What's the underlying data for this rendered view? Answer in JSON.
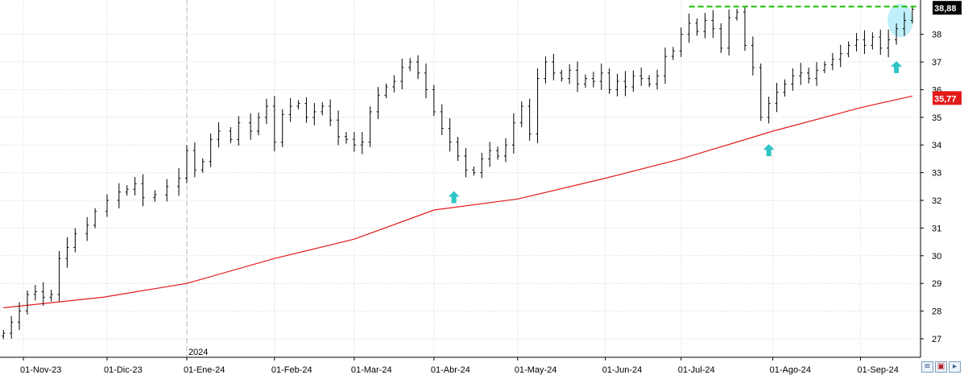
{
  "chart_data": {
    "type": "ohlc",
    "title": "",
    "xlabel": "",
    "ylabel": "",
    "ylim": [
      26.4,
      39.2
    ],
    "y_ticks": [
      27,
      28,
      29,
      30,
      31,
      32,
      33,
      34,
      35,
      36,
      37,
      38
    ],
    "x_ticks": [
      {
        "label": "01-Nov-23",
        "x": 0
      },
      {
        "label": "01-Dic-23",
        "x": 21
      },
      {
        "label": "01-Ene-24",
        "x": 41
      },
      {
        "label": "01-Feb-24",
        "x": 63
      },
      {
        "label": "01-Mar-24",
        "x": 83
      },
      {
        "label": "01-Abr-24",
        "x": 103
      },
      {
        "label": "01-May-24",
        "x": 124
      },
      {
        "label": "01-Jun-24",
        "x": 146
      },
      {
        "label": "01-Jul-24",
        "x": 165
      },
      {
        "label": "01-Ago-24",
        "x": 188
      },
      {
        "label": "01-Sep-24",
        "x": 210
      }
    ],
    "year_marker": {
      "label": "2024",
      "x": 41
    },
    "price_label": {
      "value": "38,88",
      "color": "#000000"
    },
    "ma_label": {
      "value": "35,77",
      "color": "#e31a1c"
    },
    "resistance_level": 39.0,
    "resistance_start_x": 167,
    "price_close_series": [
      {
        "x": -5,
        "y": 27.2
      },
      {
        "x": -3,
        "y": 27.6
      },
      {
        "x": -1,
        "y": 28.0
      },
      {
        "x": 1,
        "y": 28.6
      },
      {
        "x": 3,
        "y": 28.7
      },
      {
        "x": 5,
        "y": 28.5
      },
      {
        "x": 7,
        "y": 28.6
      },
      {
        "x": 9,
        "y": 29.9
      },
      {
        "x": 11,
        "y": 30.3
      },
      {
        "x": 13,
        "y": 30.8
      },
      {
        "x": 16,
        "y": 31.1
      },
      {
        "x": 18,
        "y": 31.6
      },
      {
        "x": 21,
        "y": 32.0
      },
      {
        "x": 24,
        "y": 32.3
      },
      {
        "x": 26,
        "y": 32.4
      },
      {
        "x": 28,
        "y": 32.6
      },
      {
        "x": 30,
        "y": 32.1
      },
      {
        "x": 33,
        "y": 32.2
      },
      {
        "x": 36,
        "y": 32.5
      },
      {
        "x": 39,
        "y": 32.8
      },
      {
        "x": 41,
        "y": 33.8
      },
      {
        "x": 43,
        "y": 33.1
      },
      {
        "x": 45,
        "y": 33.4
      },
      {
        "x": 47,
        "y": 34.2
      },
      {
        "x": 49,
        "y": 34.5
      },
      {
        "x": 52,
        "y": 34.2
      },
      {
        "x": 54,
        "y": 34.8
      },
      {
        "x": 57,
        "y": 34.5
      },
      {
        "x": 59,
        "y": 35.0
      },
      {
        "x": 61,
        "y": 35.4
      },
      {
        "x": 63,
        "y": 34.1
      },
      {
        "x": 65,
        "y": 35.1
      },
      {
        "x": 67,
        "y": 35.4
      },
      {
        "x": 69,
        "y": 35.5
      },
      {
        "x": 71,
        "y": 35.0
      },
      {
        "x": 73,
        "y": 35.2
      },
      {
        "x": 75,
        "y": 35.4
      },
      {
        "x": 77,
        "y": 34.9
      },
      {
        "x": 79,
        "y": 34.3
      },
      {
        "x": 81,
        "y": 34.2
      },
      {
        "x": 83,
        "y": 34.0
      },
      {
        "x": 85,
        "y": 34.1
      },
      {
        "x": 87,
        "y": 35.2
      },
      {
        "x": 89,
        "y": 35.8
      },
      {
        "x": 91,
        "y": 36.1
      },
      {
        "x": 93,
        "y": 36.3
      },
      {
        "x": 95,
        "y": 36.8
      },
      {
        "x": 97,
        "y": 37.0
      },
      {
        "x": 99,
        "y": 36.6
      },
      {
        "x": 101,
        "y": 36.0
      },
      {
        "x": 103,
        "y": 35.2
      },
      {
        "x": 105,
        "y": 34.6
      },
      {
        "x": 107,
        "y": 34.1
      },
      {
        "x": 109,
        "y": 33.6
      },
      {
        "x": 111,
        "y": 33.1
      },
      {
        "x": 113,
        "y": 33.0
      },
      {
        "x": 115,
        "y": 33.5
      },
      {
        "x": 117,
        "y": 33.8
      },
      {
        "x": 119,
        "y": 33.6
      },
      {
        "x": 121,
        "y": 34.0
      },
      {
        "x": 123,
        "y": 34.8
      },
      {
        "x": 125,
        "y": 35.4
      },
      {
        "x": 127,
        "y": 34.4
      },
      {
        "x": 129,
        "y": 36.4
      },
      {
        "x": 131,
        "y": 37.0
      },
      {
        "x": 133,
        "y": 36.6
      },
      {
        "x": 135,
        "y": 36.4
      },
      {
        "x": 137,
        "y": 36.7
      },
      {
        "x": 139,
        "y": 36.2
      },
      {
        "x": 141,
        "y": 36.4
      },
      {
        "x": 143,
        "y": 36.3
      },
      {
        "x": 145,
        "y": 36.6
      },
      {
        "x": 147,
        "y": 36.0
      },
      {
        "x": 149,
        "y": 36.3
      },
      {
        "x": 151,
        "y": 36.1
      },
      {
        "x": 153,
        "y": 36.5
      },
      {
        "x": 155,
        "y": 36.4
      },
      {
        "x": 157,
        "y": 36.2
      },
      {
        "x": 159,
        "y": 36.5
      },
      {
        "x": 161,
        "y": 37.2
      },
      {
        "x": 163,
        "y": 37.4
      },
      {
        "x": 165,
        "y": 38.0
      },
      {
        "x": 167,
        "y": 38.4
      },
      {
        "x": 169,
        "y": 38.1
      },
      {
        "x": 171,
        "y": 38.5
      },
      {
        "x": 173,
        "y": 38.2
      },
      {
        "x": 175,
        "y": 37.5
      },
      {
        "x": 177,
        "y": 38.6
      },
      {
        "x": 179,
        "y": 38.8
      },
      {
        "x": 181,
        "y": 37.6
      },
      {
        "x": 183,
        "y": 36.8
      },
      {
        "x": 185,
        "y": 35.0
      },
      {
        "x": 187,
        "y": 35.5
      },
      {
        "x": 189,
        "y": 35.9
      },
      {
        "x": 191,
        "y": 36.2
      },
      {
        "x": 193,
        "y": 36.5
      },
      {
        "x": 195,
        "y": 36.6
      },
      {
        "x": 197,
        "y": 36.4
      },
      {
        "x": 199,
        "y": 36.7
      },
      {
        "x": 201,
        "y": 36.9
      },
      {
        "x": 203,
        "y": 37.1
      },
      {
        "x": 205,
        "y": 37.3
      },
      {
        "x": 207,
        "y": 37.6
      },
      {
        "x": 209,
        "y": 37.8
      },
      {
        "x": 211,
        "y": 37.6
      },
      {
        "x": 213,
        "y": 37.9
      },
      {
        "x": 215,
        "y": 37.5
      },
      {
        "x": 217,
        "y": 37.8
      },
      {
        "x": 219,
        "y": 38.2
      },
      {
        "x": 221,
        "y": 38.5
      },
      {
        "x": 223,
        "y": 38.9
      }
    ],
    "moving_average": [
      {
        "x": -5,
        "y": 28.12
      },
      {
        "x": 20,
        "y": 28.5
      },
      {
        "x": 41,
        "y": 29.0
      },
      {
        "x": 63,
        "y": 29.9
      },
      {
        "x": 83,
        "y": 30.6
      },
      {
        "x": 103,
        "y": 31.65
      },
      {
        "x": 124,
        "y": 32.05
      },
      {
        "x": 146,
        "y": 32.8
      },
      {
        "x": 165,
        "y": 33.5
      },
      {
        "x": 188,
        "y": 34.5
      },
      {
        "x": 210,
        "y": 35.35
      },
      {
        "x": 223,
        "y": 35.77
      }
    ],
    "arrow_markers": [
      {
        "x": 108,
        "y": 32.1
      },
      {
        "x": 187,
        "y": 33.8
      },
      {
        "x": 219,
        "y": 36.8
      }
    ],
    "highlight_circle": {
      "x": 220,
      "y": 38.5
    },
    "colors": {
      "bars": "#000000",
      "moving_average": "#e31a1c",
      "resistance": "#22c40a",
      "arrows": "#2ec4c4",
      "highlight": "#a9eaf5",
      "grid": "#d4d4d4"
    }
  }
}
